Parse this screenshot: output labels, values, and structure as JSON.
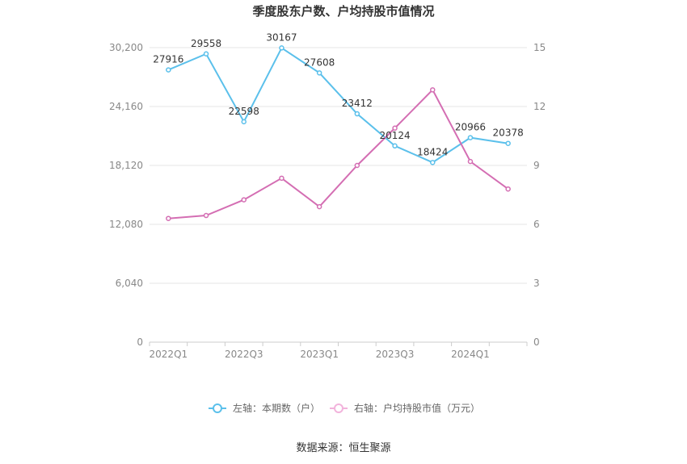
{
  "chart_data": {
    "type": "line",
    "title": "季度股东户数、户均持股市值情况",
    "x": [
      "2022Q1",
      "2022Q2",
      "2022Q3",
      "2022Q4",
      "2023Q1",
      "2023Q2",
      "2023Q3",
      "2023Q4",
      "2024Q1",
      "2024Q2"
    ],
    "x_tick_labels": [
      "2022Q1",
      "2022Q3",
      "2023Q1",
      "2023Q3",
      "2024Q1"
    ],
    "left_axis": {
      "ylim": [
        0,
        30200
      ],
      "ticks": [
        "0",
        "6,040",
        "12,080",
        "18,120",
        "24,160",
        "30,200"
      ]
    },
    "right_axis": {
      "ylim": [
        0,
        15
      ],
      "ticks": [
        "0",
        "3",
        "6",
        "9",
        "12",
        "15"
      ]
    },
    "series": [
      {
        "name": "左轴：本期数（户）",
        "axis": "left",
        "color": "#5bc0eb",
        "values": [
          27916,
          29558,
          22598,
          30167,
          27608,
          23412,
          20124,
          18424,
          20966,
          20378
        ],
        "labels": [
          "27916",
          "29558",
          "22598",
          "30167",
          "27608",
          "23412",
          "20124",
          "18424",
          "20966",
          "20378"
        ]
      },
      {
        "name": "右轴：户均持股市值（万元）",
        "axis": "right",
        "color": "#d46eb3",
        "values": [
          6.3,
          6.45,
          7.25,
          8.35,
          6.9,
          9.0,
          10.9,
          12.85,
          9.2,
          7.8
        ]
      }
    ],
    "grid": true,
    "legend_position": "bottom-center"
  },
  "footer": {
    "source": "数据来源：恒生聚源"
  }
}
